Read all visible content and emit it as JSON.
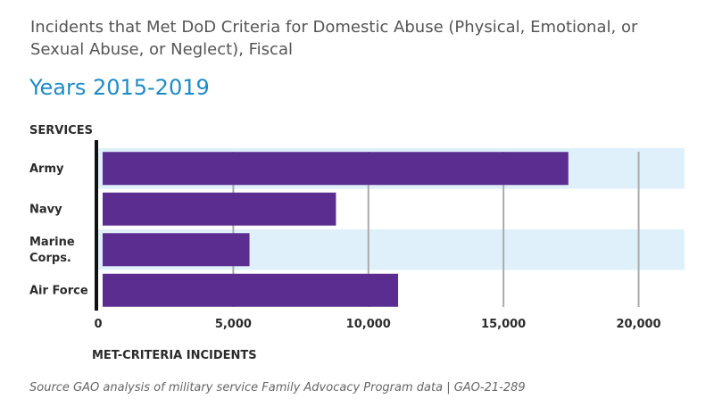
{
  "title": "Incidents that Met DoD Criteria for Domestic Abuse (Physical, Emotional, or Sexual Abuse, or Neglect), Fiscal",
  "subtitle": "Years 2015-2019",
  "source": "Source GAO analysis of military service Family Advocacy Program data | GAO-21-289",
  "colors": {
    "bar": "#5c2d91",
    "band": "#dff0fb",
    "title": "#555555",
    "subtitle": "#1e8bc8",
    "grid": "#aaaaaa",
    "axis": "#111111"
  },
  "chart_data": {
    "type": "bar",
    "orientation": "horizontal",
    "ylabel": "SERVICES",
    "xlabel": "MET-CRITERIA INCIDENTS",
    "categories": [
      "Army",
      "Navy",
      "Marine Corps.",
      "Air Force"
    ],
    "category_label_lines": [
      [
        "Army"
      ],
      [
        "Navy"
      ],
      [
        "Marine",
        "Corps."
      ],
      [
        "Air Force"
      ]
    ],
    "values": [
      17400,
      8800,
      5600,
      11100
    ],
    "xlim": [
      0,
      21700
    ],
    "xticks": [
      0,
      5000,
      10000,
      15000,
      20000
    ],
    "xtick_labels": [
      "0",
      "5,000",
      "10,000",
      "15,000",
      "20,000"
    ],
    "grid": true,
    "legend": "none"
  }
}
